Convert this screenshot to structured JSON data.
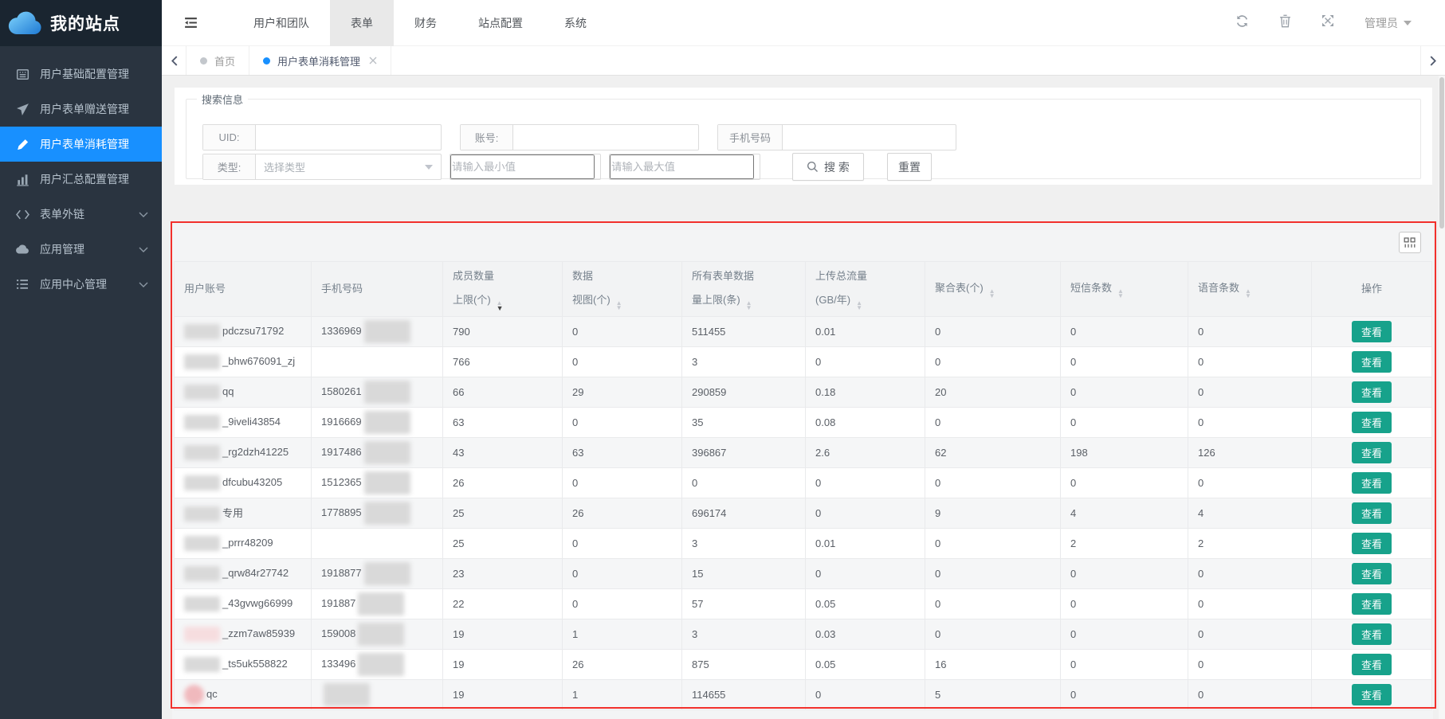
{
  "colors": {
    "accent_blue": "#1890ff",
    "view_button_green": "#17a28b",
    "highlight_red": "#f2302c",
    "sidebar_dark": "#2a3440",
    "logo_dark": "#1a2530",
    "topnav_active_bg": "#e9e9e9"
  },
  "app": {
    "site_name": "我的站点",
    "logo_icon": "cloud-icon"
  },
  "topnav": {
    "toggle_icon": "sidebar-toggle-icon",
    "items": [
      {
        "label": "用户和团队",
        "active": false
      },
      {
        "label": "表单",
        "active": true
      },
      {
        "label": "财务",
        "active": false
      },
      {
        "label": "站点配置",
        "active": false
      },
      {
        "label": "系统",
        "active": false
      }
    ],
    "right_icons": [
      {
        "name": "refresh-icon"
      },
      {
        "name": "trash-icon"
      },
      {
        "name": "expand-icon"
      }
    ],
    "admin_label": "管理员",
    "admin_caret_icon": "caret-down-icon"
  },
  "tabbar": {
    "prev_icon": "chevron-left-icon",
    "next_icon": "chevron-right-icon",
    "tabs": [
      {
        "label": "首页",
        "active": false,
        "closable": false
      },
      {
        "label": "用户表单消耗管理",
        "active": true,
        "closable": true
      }
    ]
  },
  "sidebar": {
    "items": [
      {
        "label": "用户基础配置管理",
        "icon": "grid-icon",
        "active": false,
        "expandable": false
      },
      {
        "label": "用户表单赠送管理",
        "icon": "send-icon",
        "active": false,
        "expandable": false
      },
      {
        "label": "用户表单消耗管理",
        "icon": "pen-icon",
        "active": true,
        "expandable": false
      },
      {
        "label": "用户汇总配置管理",
        "icon": "bar-chart-icon",
        "active": false,
        "expandable": false
      },
      {
        "label": "表单外链",
        "icon": "code-icon",
        "active": false,
        "expandable": true
      },
      {
        "label": "应用管理",
        "icon": "cloud-icon",
        "active": false,
        "expandable": true
      },
      {
        "label": "应用中心管理",
        "icon": "list-icon",
        "active": false,
        "expandable": true
      }
    ]
  },
  "search": {
    "legend": "搜索信息",
    "uid_label": "UID:",
    "account_label": "账号:",
    "phone_label": "手机号码",
    "type_label": "类型:",
    "type_value": "选择类型",
    "min_placeholder": "请输入最小值",
    "max_placeholder": "请输入最大值",
    "search_button": "搜 索",
    "search_icon": "search-icon",
    "reset_button": "重置"
  },
  "panel": {
    "settings_icon": "columns-icon"
  },
  "table": {
    "action_label": "查看",
    "columns": [
      {
        "line1": "用户账号",
        "line2": "",
        "sort": "none"
      },
      {
        "line1": "手机号码",
        "line2": "",
        "sort": "none"
      },
      {
        "line1": "成员数量",
        "line2": "上限(个)",
        "sort": "desc"
      },
      {
        "line1": "数据",
        "line2": "视图(个)",
        "sort": "unsorted"
      },
      {
        "line1": "所有表单数据",
        "line2": "量上限(条)",
        "sort": "unsorted"
      },
      {
        "line1": "上传总流量",
        "line2": "(GB/年)",
        "sort": "unsorted"
      },
      {
        "line1": "聚合表(个)",
        "line2": "",
        "sort": "unsorted"
      },
      {
        "line1": "短信条数",
        "line2": "",
        "sort": "unsorted"
      },
      {
        "line1": "语音条数",
        "line2": "",
        "sort": "unsorted"
      },
      {
        "line1": "操作",
        "line2": "",
        "sort": "none"
      }
    ],
    "rows": [
      {
        "account": "pdczsu71792",
        "account_redacted": true,
        "redact_style": "gray",
        "phone": "1336969",
        "phone_redacted": true,
        "member_limit": "790",
        "data_views": "0",
        "form_data_limit": "511455",
        "upload_traffic": "0.01",
        "aggregate_tables": "0",
        "sms_count": "0",
        "voice_count": "0"
      },
      {
        "account": "_bhw676091_zj",
        "account_redacted": true,
        "redact_style": "gray",
        "phone": "",
        "phone_redacted": false,
        "member_limit": "766",
        "data_views": "0",
        "form_data_limit": "3",
        "upload_traffic": "0",
        "aggregate_tables": "0",
        "sms_count": "0",
        "voice_count": "0"
      },
      {
        "account": "qq",
        "account_redacted": true,
        "redact_style": "gray",
        "phone": "1580261",
        "phone_redacted": true,
        "member_limit": "66",
        "data_views": "29",
        "form_data_limit": "290859",
        "upload_traffic": "0.18",
        "aggregate_tables": "20",
        "sms_count": "0",
        "voice_count": "0"
      },
      {
        "account": "_9iveli43854",
        "account_redacted": true,
        "redact_style": "gray",
        "phone": "1916669",
        "phone_redacted": true,
        "member_limit": "63",
        "data_views": "0",
        "form_data_limit": "35",
        "upload_traffic": "0.08",
        "aggregate_tables": "0",
        "sms_count": "0",
        "voice_count": "0"
      },
      {
        "account": "_rg2dzh41225",
        "account_redacted": true,
        "redact_style": "gray",
        "phone": "1917486",
        "phone_redacted": true,
        "member_limit": "43",
        "data_views": "63",
        "form_data_limit": "396867",
        "upload_traffic": "2.6",
        "aggregate_tables": "62",
        "sms_count": "198",
        "voice_count": "126"
      },
      {
        "account": "dfcubu43205",
        "account_redacted": true,
        "redact_style": "gray",
        "phone": "1512365",
        "phone_redacted": true,
        "member_limit": "26",
        "data_views": "0",
        "form_data_limit": "0",
        "upload_traffic": "0",
        "aggregate_tables": "0",
        "sms_count": "0",
        "voice_count": "0"
      },
      {
        "account": "专用",
        "account_redacted": true,
        "redact_style": "gray",
        "phone": "1778895",
        "phone_redacted": true,
        "member_limit": "25",
        "data_views": "26",
        "form_data_limit": "696174",
        "upload_traffic": "0",
        "aggregate_tables": "9",
        "sms_count": "4",
        "voice_count": "4"
      },
      {
        "account": "_prrr48209",
        "account_redacted": true,
        "redact_style": "gray",
        "phone": "",
        "phone_redacted": false,
        "member_limit": "25",
        "data_views": "0",
        "form_data_limit": "3",
        "upload_traffic": "0.01",
        "aggregate_tables": "0",
        "sms_count": "2",
        "voice_count": "2"
      },
      {
        "account": "_qrw84r27742",
        "account_redacted": true,
        "redact_style": "gray",
        "phone": "1918877",
        "phone_redacted": true,
        "member_limit": "23",
        "data_views": "0",
        "form_data_limit": "15",
        "upload_traffic": "0",
        "aggregate_tables": "0",
        "sms_count": "0",
        "voice_count": "0"
      },
      {
        "account": "_43gvwg66999",
        "account_redacted": true,
        "redact_style": "gray",
        "phone": "191887",
        "phone_redacted": true,
        "member_limit": "22",
        "data_views": "0",
        "form_data_limit": "57",
        "upload_traffic": "0.05",
        "aggregate_tables": "0",
        "sms_count": "0",
        "voice_count": "0"
      },
      {
        "account": "_zzm7aw85939",
        "account_redacted": true,
        "redact_style": "pink",
        "phone": "159008",
        "phone_redacted": true,
        "member_limit": "19",
        "data_views": "1",
        "form_data_limit": "3",
        "upload_traffic": "0.03",
        "aggregate_tables": "0",
        "sms_count": "0",
        "voice_count": "0"
      },
      {
        "account": "_ts5uk558822",
        "account_redacted": true,
        "redact_style": "gray",
        "phone": "133496",
        "phone_redacted": true,
        "member_limit": "19",
        "data_views": "26",
        "form_data_limit": "875",
        "upload_traffic": "0.05",
        "aggregate_tables": "16",
        "sms_count": "0",
        "voice_count": "0"
      },
      {
        "account": "qc",
        "account_redacted": true,
        "redact_style": "pink-circle",
        "phone": "",
        "phone_redacted": true,
        "member_limit": "19",
        "data_views": "1",
        "form_data_limit": "114655",
        "upload_traffic": "0",
        "aggregate_tables": "5",
        "sms_count": "0",
        "voice_count": "0"
      }
    ]
  }
}
